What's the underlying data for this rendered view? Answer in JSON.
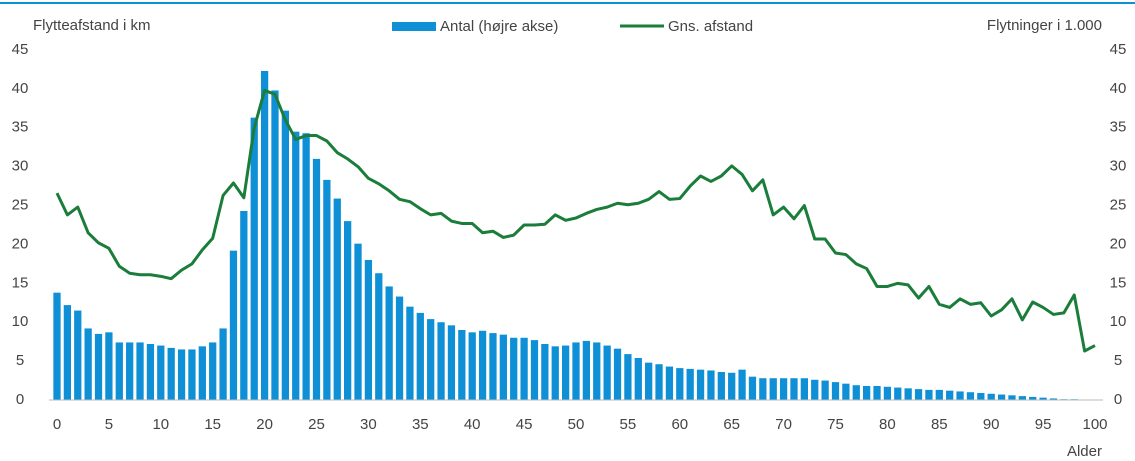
{
  "chart_data": {
    "type": "combo",
    "y_label": "Flytteafstand i km",
    "y2_label": "Flytninger i 1.000",
    "x_label": "Alder",
    "x": [
      0,
      1,
      2,
      3,
      4,
      5,
      6,
      7,
      8,
      9,
      10,
      11,
      12,
      13,
      14,
      15,
      16,
      17,
      18,
      19,
      20,
      21,
      22,
      23,
      24,
      25,
      26,
      27,
      28,
      29,
      30,
      31,
      32,
      33,
      34,
      35,
      36,
      37,
      38,
      39,
      40,
      41,
      42,
      43,
      44,
      45,
      46,
      47,
      48,
      49,
      50,
      51,
      52,
      53,
      54,
      55,
      56,
      57,
      58,
      59,
      60,
      61,
      62,
      63,
      64,
      65,
      66,
      67,
      68,
      69,
      70,
      71,
      72,
      73,
      74,
      75,
      76,
      77,
      78,
      79,
      80,
      81,
      82,
      83,
      84,
      85,
      86,
      87,
      88,
      89,
      90,
      91,
      92,
      93,
      94,
      95,
      96,
      97,
      98,
      99,
      100
    ],
    "xlim": [
      0,
      100
    ],
    "xticks": [
      0,
      5,
      10,
      15,
      20,
      25,
      30,
      35,
      40,
      45,
      50,
      55,
      60,
      65,
      70,
      75,
      80,
      85,
      90,
      95,
      100
    ],
    "ylim": [
      0,
      45
    ],
    "yticks": [
      0,
      5,
      10,
      15,
      20,
      25,
      30,
      35,
      40,
      45
    ],
    "y2lim": [
      0,
      45
    ],
    "y2ticks": [
      0,
      5,
      10,
      15,
      20,
      25,
      30,
      35,
      40,
      45
    ],
    "series": [
      {
        "name": "Antal (højre akse)",
        "type": "bar",
        "axis": "y2",
        "color": "#0e8fd6",
        "values": [
          13.8,
          12.2,
          11.5,
          9.2,
          8.5,
          8.7,
          7.4,
          7.4,
          7.4,
          7.2,
          7.0,
          6.7,
          6.5,
          6.5,
          6.9,
          7.4,
          9.2,
          19.2,
          24.3,
          36.3,
          42.3,
          39.8,
          37.2,
          34.5,
          34.3,
          31.0,
          28.3,
          25.9,
          23.0,
          20.1,
          18.0,
          16.3,
          14.6,
          13.3,
          12.0,
          11.2,
          10.4,
          10.0,
          9.6,
          9.0,
          8.7,
          8.9,
          8.6,
          8.4,
          8.0,
          8.0,
          7.7,
          7.2,
          6.9,
          7.0,
          7.4,
          7.6,
          7.4,
          7.0,
          6.6,
          5.9,
          5.4,
          4.8,
          4.6,
          4.3,
          4.1,
          4.0,
          3.9,
          3.8,
          3.6,
          3.5,
          3.9,
          3.0,
          2.8,
          2.8,
          2.8,
          2.8,
          2.8,
          2.6,
          2.5,
          2.3,
          2.1,
          1.9,
          1.8,
          1.8,
          1.7,
          1.6,
          1.5,
          1.4,
          1.3,
          1.3,
          1.2,
          1.1,
          1.0,
          0.9,
          0.8,
          0.7,
          0.6,
          0.5,
          0.4,
          0.3,
          0.2,
          0.1,
          0.1,
          0.05,
          0
        ]
      },
      {
        "name": "Gns. afstand",
        "type": "line",
        "axis": "y",
        "color": "#1a7d3a",
        "values": [
          26.6,
          23.8,
          24.8,
          21.5,
          20.2,
          19.5,
          17.2,
          16.3,
          16.1,
          16.1,
          15.9,
          15.6,
          16.7,
          17.5,
          19.3,
          20.8,
          26.3,
          27.9,
          26.0,
          35.0,
          39.8,
          39.3,
          36.0,
          33.5,
          34.0,
          34.0,
          33.3,
          31.8,
          31.0,
          30.0,
          28.5,
          27.8,
          26.9,
          25.8,
          25.5,
          24.6,
          23.8,
          24.0,
          23.0,
          22.7,
          22.7,
          21.5,
          21.7,
          20.9,
          21.2,
          22.5,
          22.5,
          22.6,
          23.8,
          23.1,
          23.4,
          24.0,
          24.5,
          24.8,
          25.3,
          25.1,
          25.3,
          25.8,
          26.8,
          25.8,
          25.9,
          27.5,
          28.8,
          28.1,
          28.8,
          30.1,
          29.0,
          26.9,
          28.3,
          23.8,
          24.8,
          23.3,
          25.0,
          20.7,
          20.7,
          18.9,
          18.7,
          17.5,
          16.9,
          14.6,
          14.6,
          15.0,
          14.8,
          13.1,
          14.6,
          12.3,
          11.9,
          13.0,
          12.3,
          12.5,
          10.8,
          11.6,
          13.0,
          10.3,
          12.6,
          11.9,
          11.0,
          11.2,
          13.5,
          6.3,
          7.0
        ]
      }
    ]
  }
}
